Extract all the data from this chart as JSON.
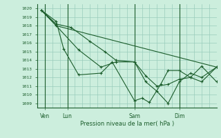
{
  "title": "Pression niveau de la mer( hPa )",
  "ylabel_values": [
    1009,
    1010,
    1011,
    1012,
    1013,
    1014,
    1015,
    1016,
    1017,
    1018,
    1019,
    1020
  ],
  "ylim": [
    1008.5,
    1020.5
  ],
  "xlim": [
    0,
    96
  ],
  "background_color": "#cceedd",
  "grid_color": "#99ccbb",
  "line_color": "#1a5c2a",
  "vline_x": [
    4,
    16,
    52,
    76
  ],
  "xtick_positions": [
    4,
    16,
    52,
    76
  ],
  "xtick_labels": [
    "Ven",
    "Lun",
    "Sam",
    "Dim"
  ],
  "lines": [
    {
      "x": [
        2,
        10,
        96
      ],
      "y": [
        1019.8,
        1018.0,
        1013.2
      ],
      "markers": false
    },
    {
      "x": [
        2,
        10,
        22,
        34,
        42,
        52,
        58,
        64,
        70,
        76,
        82,
        88,
        96
      ],
      "y": [
        1019.8,
        1018.0,
        1015.2,
        1013.2,
        1013.8,
        1013.8,
        1011.5,
        1010.4,
        1009.0,
        1011.5,
        1012.5,
        1012.0,
        1013.2
      ],
      "markers": true
    },
    {
      "x": [
        2,
        10,
        18,
        28,
        36,
        42,
        52,
        58,
        64,
        70,
        76,
        82,
        88,
        96
      ],
      "y": [
        1019.8,
        1018.2,
        1017.8,
        1016.2,
        1015.0,
        1014.0,
        1013.8,
        1012.2,
        1011.0,
        1011.2,
        1011.8,
        1012.0,
        1011.5,
        1013.2
      ],
      "markers": true
    },
    {
      "x": [
        2,
        10,
        14,
        22,
        34,
        40,
        52,
        56,
        60,
        66,
        70,
        76,
        82,
        88,
        96
      ],
      "y": [
        1019.8,
        1018.5,
        1015.3,
        1012.3,
        1012.5,
        1013.8,
        1009.3,
        1009.6,
        1009.1,
        1011.2,
        1012.8,
        1012.8,
        1012.0,
        1013.3,
        1011.5
      ],
      "markers": true
    }
  ]
}
